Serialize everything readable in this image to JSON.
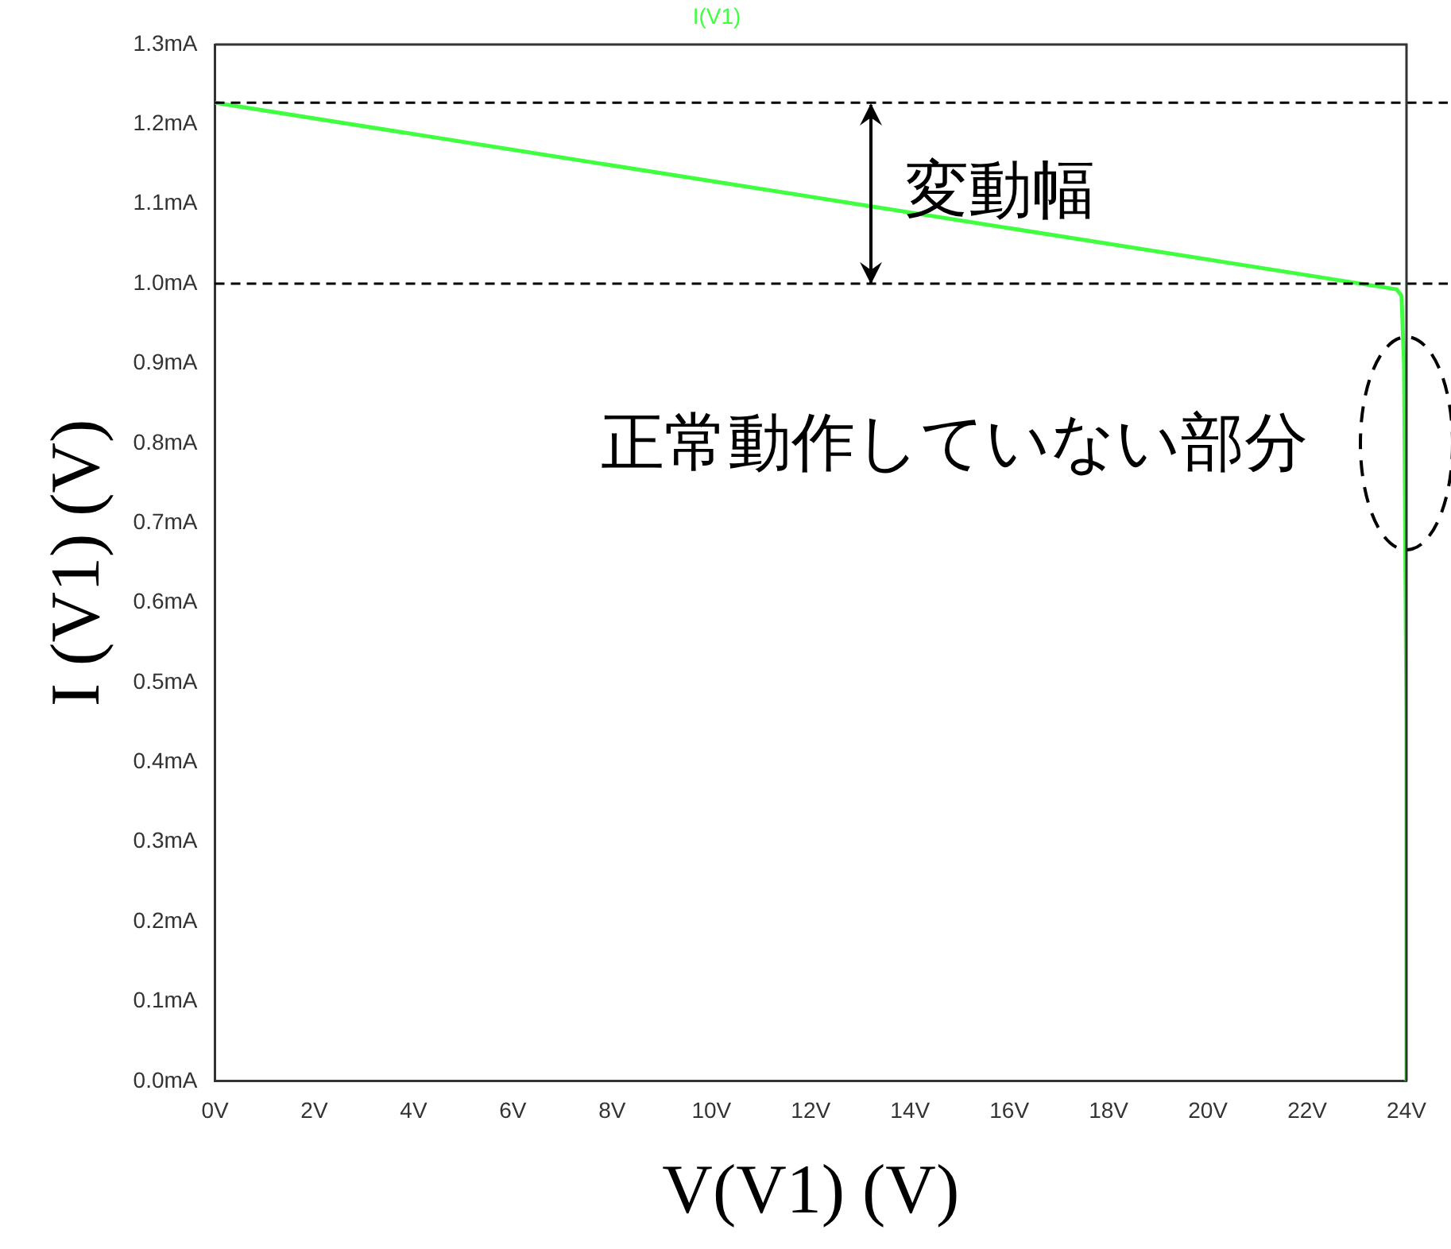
{
  "chart_data": {
    "type": "line",
    "xlabel": "V(V1) (V)",
    "ylabel": "I (V1) (V)",
    "x": [
      0,
      23.8,
      23.9,
      23.95,
      24,
      24
    ],
    "series": [
      {
        "name": "I(V1)",
        "color": "#40ff40",
        "values": [
          1.227,
          0.993,
          0.985,
          0.9,
          0.45,
          0
        ]
      }
    ],
    "xlim": [
      0,
      24
    ],
    "xticks": [
      {
        "value": 0,
        "label": "0V"
      },
      {
        "value": 2,
        "label": "2V"
      },
      {
        "value": 4,
        "label": "4V"
      },
      {
        "value": 6,
        "label": "6V"
      },
      {
        "value": 8,
        "label": "8V"
      },
      {
        "value": 10,
        "label": "10V"
      },
      {
        "value": 12,
        "label": "12V"
      },
      {
        "value": 14,
        "label": "14V"
      },
      {
        "value": 16,
        "label": "16V"
      },
      {
        "value": 18,
        "label": "18V"
      },
      {
        "value": 20,
        "label": "20V"
      },
      {
        "value": 22,
        "label": "22V"
      },
      {
        "value": 24,
        "label": "24V"
      }
    ],
    "ylim": [
      0,
      1.3
    ],
    "yticks": [
      {
        "value": 0,
        "label": "0.0mA"
      },
      {
        "value": 0.1,
        "label": "0.1mA"
      },
      {
        "value": 0.2,
        "label": "0.2mA"
      },
      {
        "value": 0.3,
        "label": "0.3mA"
      },
      {
        "value": 0.4,
        "label": "0.4mA"
      },
      {
        "value": 0.5,
        "label": "0.5mA"
      },
      {
        "value": 0.6,
        "label": "0.6mA"
      },
      {
        "value": 0.7,
        "label": "0.7mA"
      },
      {
        "value": 0.8,
        "label": "0.8mA"
      },
      {
        "value": 0.9,
        "label": "0.9mA"
      },
      {
        "value": 1.0,
        "label": "1.0mA"
      },
      {
        "value": 1.1,
        "label": "1.1mA"
      },
      {
        "value": 1.2,
        "label": "1.2mA"
      },
      {
        "value": 1.3,
        "label": "1.3mA"
      }
    ],
    "ref_lines": [
      {
        "axis": "y",
        "value": 1.227,
        "color": "#000000",
        "line_style": "dashed"
      },
      {
        "axis": "y",
        "value": 1.0,
        "color": "#000000",
        "line_style": "dashed"
      }
    ],
    "annotations": [
      "変動幅",
      "正常動作していない部分"
    ],
    "legend": "top",
    "grid": false,
    "marker": "none",
    "line_style": "solid"
  }
}
